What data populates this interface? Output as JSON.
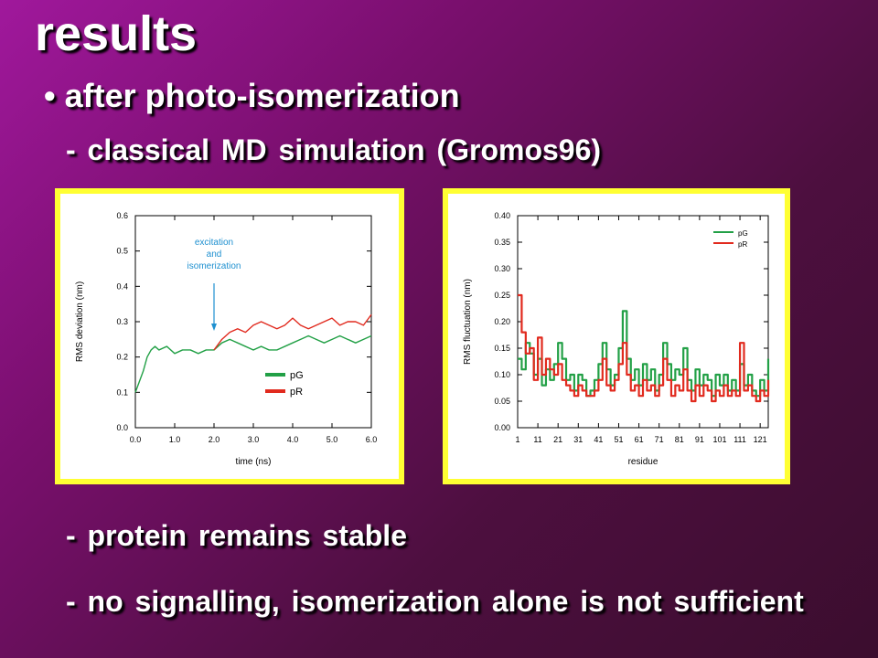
{
  "slide": {
    "title": "results",
    "bullet": "• after photo-isomerization",
    "sub1": "- classical MD simulation (Gromos96)",
    "sub2": "- protein remains stable",
    "sub3": "- no signalling, isomerization alone is not sufficient"
  },
  "colors": {
    "pG": "#22a046",
    "pR": "#e12a1e",
    "frame": "#ffff33",
    "annotation": "#1e90d0"
  },
  "chart_data": [
    {
      "type": "line",
      "xlabel": "time (ns)",
      "ylabel": "RMS deviation (nm)",
      "xlim": [
        0,
        6
      ],
      "ylim": [
        0,
        0.6
      ],
      "xticks": [
        "0.0",
        "1.0",
        "2.0",
        "3.0",
        "4.0",
        "5.0",
        "6.0"
      ],
      "yticks": [
        "0.0",
        "0.1",
        "0.2",
        "0.3",
        "0.4",
        "0.5",
        "0.6"
      ],
      "annotation": [
        "excitation",
        "and",
        "isomerization"
      ],
      "annotation_x": 2.0,
      "legend": "bottom-right",
      "series": [
        {
          "name": "pG",
          "x": [
            0,
            0.1,
            0.2,
            0.3,
            0.4,
            0.5,
            0.6,
            0.8,
            1.0,
            1.2,
            1.4,
            1.6,
            1.8,
            2.0,
            2.2,
            2.4,
            2.6,
            2.8,
            3.0,
            3.2,
            3.4,
            3.6,
            3.8,
            4.0,
            4.2,
            4.4,
            4.6,
            4.8,
            5.0,
            5.2,
            5.4,
            5.6,
            5.8,
            6.0
          ],
          "y": [
            0.1,
            0.13,
            0.16,
            0.2,
            0.22,
            0.23,
            0.22,
            0.23,
            0.21,
            0.22,
            0.22,
            0.21,
            0.22,
            0.22,
            0.24,
            0.25,
            0.24,
            0.23,
            0.22,
            0.23,
            0.22,
            0.22,
            0.23,
            0.24,
            0.25,
            0.26,
            0.25,
            0.24,
            0.25,
            0.26,
            0.25,
            0.24,
            0.25,
            0.26
          ]
        },
        {
          "name": "pR",
          "x": [
            2.0,
            2.2,
            2.4,
            2.6,
            2.8,
            3.0,
            3.2,
            3.4,
            3.6,
            3.8,
            4.0,
            4.2,
            4.4,
            4.6,
            4.8,
            5.0,
            5.2,
            5.4,
            5.6,
            5.8,
            6.0
          ],
          "y": [
            0.22,
            0.25,
            0.27,
            0.28,
            0.27,
            0.29,
            0.3,
            0.29,
            0.28,
            0.29,
            0.31,
            0.29,
            0.28,
            0.29,
            0.3,
            0.31,
            0.29,
            0.3,
            0.3,
            0.29,
            0.32
          ]
        }
      ]
    },
    {
      "type": "line",
      "xlabel": "residue",
      "ylabel": "RMS fluctuation (nm)",
      "xlim": [
        1,
        125
      ],
      "ylim": [
        0,
        0.4
      ],
      "xticks": [
        "1",
        "11",
        "21",
        "31",
        "41",
        "51",
        "61",
        "71",
        "81",
        "91",
        "101",
        "111",
        "121"
      ],
      "yticks": [
        "0.00",
        "0.05",
        "0.10",
        "0.15",
        "0.20",
        "0.25",
        "0.30",
        "0.35",
        "0.40"
      ],
      "legend": "top-right",
      "series": [
        {
          "name": "pG",
          "x": [
            1,
            3,
            5,
            7,
            9,
            11,
            13,
            15,
            17,
            19,
            21,
            23,
            25,
            27,
            29,
            31,
            33,
            35,
            37,
            39,
            41,
            43,
            45,
            47,
            49,
            51,
            53,
            55,
            57,
            59,
            61,
            63,
            65,
            67,
            69,
            71,
            73,
            75,
            77,
            79,
            81,
            83,
            85,
            87,
            89,
            91,
            93,
            95,
            97,
            99,
            101,
            103,
            105,
            107,
            109,
            111,
            113,
            115,
            117,
            119,
            121,
            123,
            125
          ],
          "y": [
            0.13,
            0.11,
            0.16,
            0.14,
            0.1,
            0.13,
            0.08,
            0.11,
            0.09,
            0.12,
            0.16,
            0.13,
            0.09,
            0.1,
            0.07,
            0.1,
            0.09,
            0.06,
            0.07,
            0.09,
            0.12,
            0.16,
            0.11,
            0.08,
            0.1,
            0.15,
            0.22,
            0.13,
            0.09,
            0.11,
            0.08,
            0.12,
            0.09,
            0.11,
            0.07,
            0.1,
            0.16,
            0.12,
            0.09,
            0.11,
            0.1,
            0.15,
            0.09,
            0.07,
            0.11,
            0.08,
            0.1,
            0.09,
            0.06,
            0.1,
            0.08,
            0.1,
            0.07,
            0.09,
            0.07,
            0.12,
            0.08,
            0.1,
            0.07,
            0.06,
            0.09,
            0.07,
            0.13
          ]
        },
        {
          "name": "pR",
          "x": [
            1,
            3,
            5,
            7,
            9,
            11,
            13,
            15,
            17,
            19,
            21,
            23,
            25,
            27,
            29,
            31,
            33,
            35,
            37,
            39,
            41,
            43,
            45,
            47,
            49,
            51,
            53,
            55,
            57,
            59,
            61,
            63,
            65,
            67,
            69,
            71,
            73,
            75,
            77,
            79,
            81,
            83,
            85,
            87,
            89,
            91,
            93,
            95,
            97,
            99,
            101,
            103,
            105,
            107,
            109,
            111,
            113,
            115,
            117,
            119,
            121,
            123,
            125
          ],
          "y": [
            0.25,
            0.18,
            0.14,
            0.15,
            0.09,
            0.17,
            0.1,
            0.13,
            0.11,
            0.1,
            0.12,
            0.09,
            0.08,
            0.07,
            0.06,
            0.08,
            0.07,
            0.06,
            0.06,
            0.07,
            0.09,
            0.13,
            0.08,
            0.07,
            0.09,
            0.12,
            0.16,
            0.1,
            0.07,
            0.08,
            0.06,
            0.09,
            0.07,
            0.08,
            0.06,
            0.08,
            0.13,
            0.09,
            0.06,
            0.08,
            0.07,
            0.11,
            0.07,
            0.05,
            0.08,
            0.06,
            0.08,
            0.07,
            0.05,
            0.07,
            0.06,
            0.08,
            0.06,
            0.07,
            0.06,
            0.16,
            0.07,
            0.08,
            0.06,
            0.05,
            0.07,
            0.06,
            0.09
          ]
        }
      ]
    }
  ]
}
